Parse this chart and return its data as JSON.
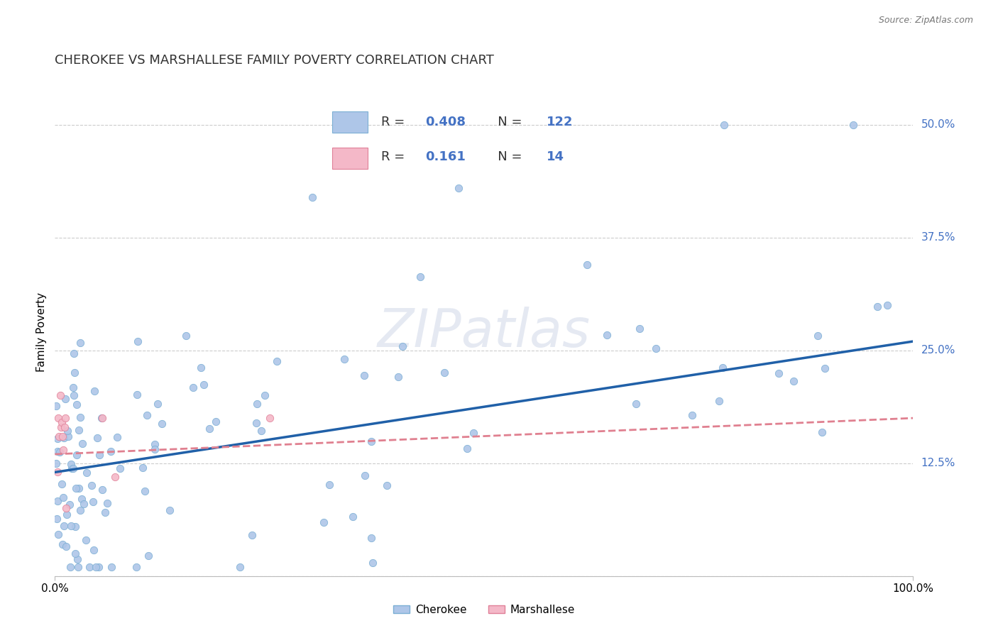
{
  "title": "CHEROKEE VS MARSHALLESE FAMILY POVERTY CORRELATION CHART",
  "source": "Source: ZipAtlas.com",
  "ylabel": "Family Poverty",
  "watermark": "ZIPatlas",
  "cherokee_color": "#aec6e8",
  "cherokee_edge": "#7bafd4",
  "marshallese_color": "#f4b8c8",
  "marshallese_edge": "#e08098",
  "regression_cherokee_color": "#2060a8",
  "regression_marshallese_color": "#e08090",
  "background_color": "#ffffff",
  "grid_color": "#cccccc",
  "ytick_color": "#4472c4",
  "regression_cherokee_intercept": 0.115,
  "regression_cherokee_slope": 0.145,
  "regression_marshallese_intercept": 0.135,
  "regression_marshallese_slope": 0.04
}
